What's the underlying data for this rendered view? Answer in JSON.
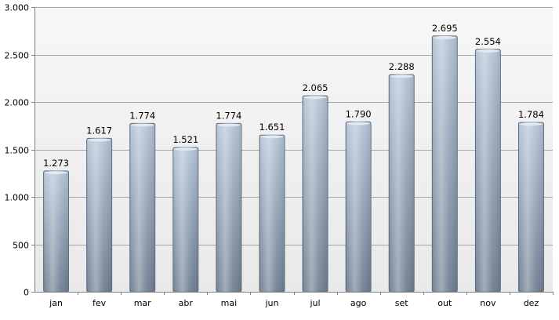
{
  "chart_data": {
    "type": "bar",
    "categories": [
      "jan",
      "fev",
      "mar",
      "abr",
      "mai",
      "jun",
      "jul",
      "ago",
      "set",
      "out",
      "nov",
      "dez"
    ],
    "values": [
      1273,
      1617,
      1774,
      1521,
      1774,
      1651,
      2065,
      1790,
      2288,
      2695,
      2554,
      1784
    ],
    "data_labels": [
      "1.273",
      "1.617",
      "1.774",
      "1.521",
      "1.774",
      "1.651",
      "2.065",
      "1.790",
      "2.288",
      "2.695",
      "2.554",
      "1.784"
    ],
    "y_ticks": [
      0,
      500,
      1000,
      1500,
      2000,
      2500,
      3000
    ],
    "y_tick_labels": [
      "0",
      "500",
      "1.000",
      "1.500",
      "2.000",
      "2.500",
      "3.000"
    ],
    "ylim": [
      0,
      3000
    ],
    "grid": true,
    "legend": "none",
    "title": "",
    "xlabel": "",
    "ylabel": "",
    "colors": {
      "bar_top": "#b4c4d6",
      "bar_bottom": "#6f7f92",
      "bar_stroke": "#5d6b7b",
      "plot_bg_top": "#f7f7f7",
      "plot_bg_bottom": "#e9e9e9",
      "gridline": "#a6a6a6",
      "axis": "#7f7f7f"
    }
  }
}
